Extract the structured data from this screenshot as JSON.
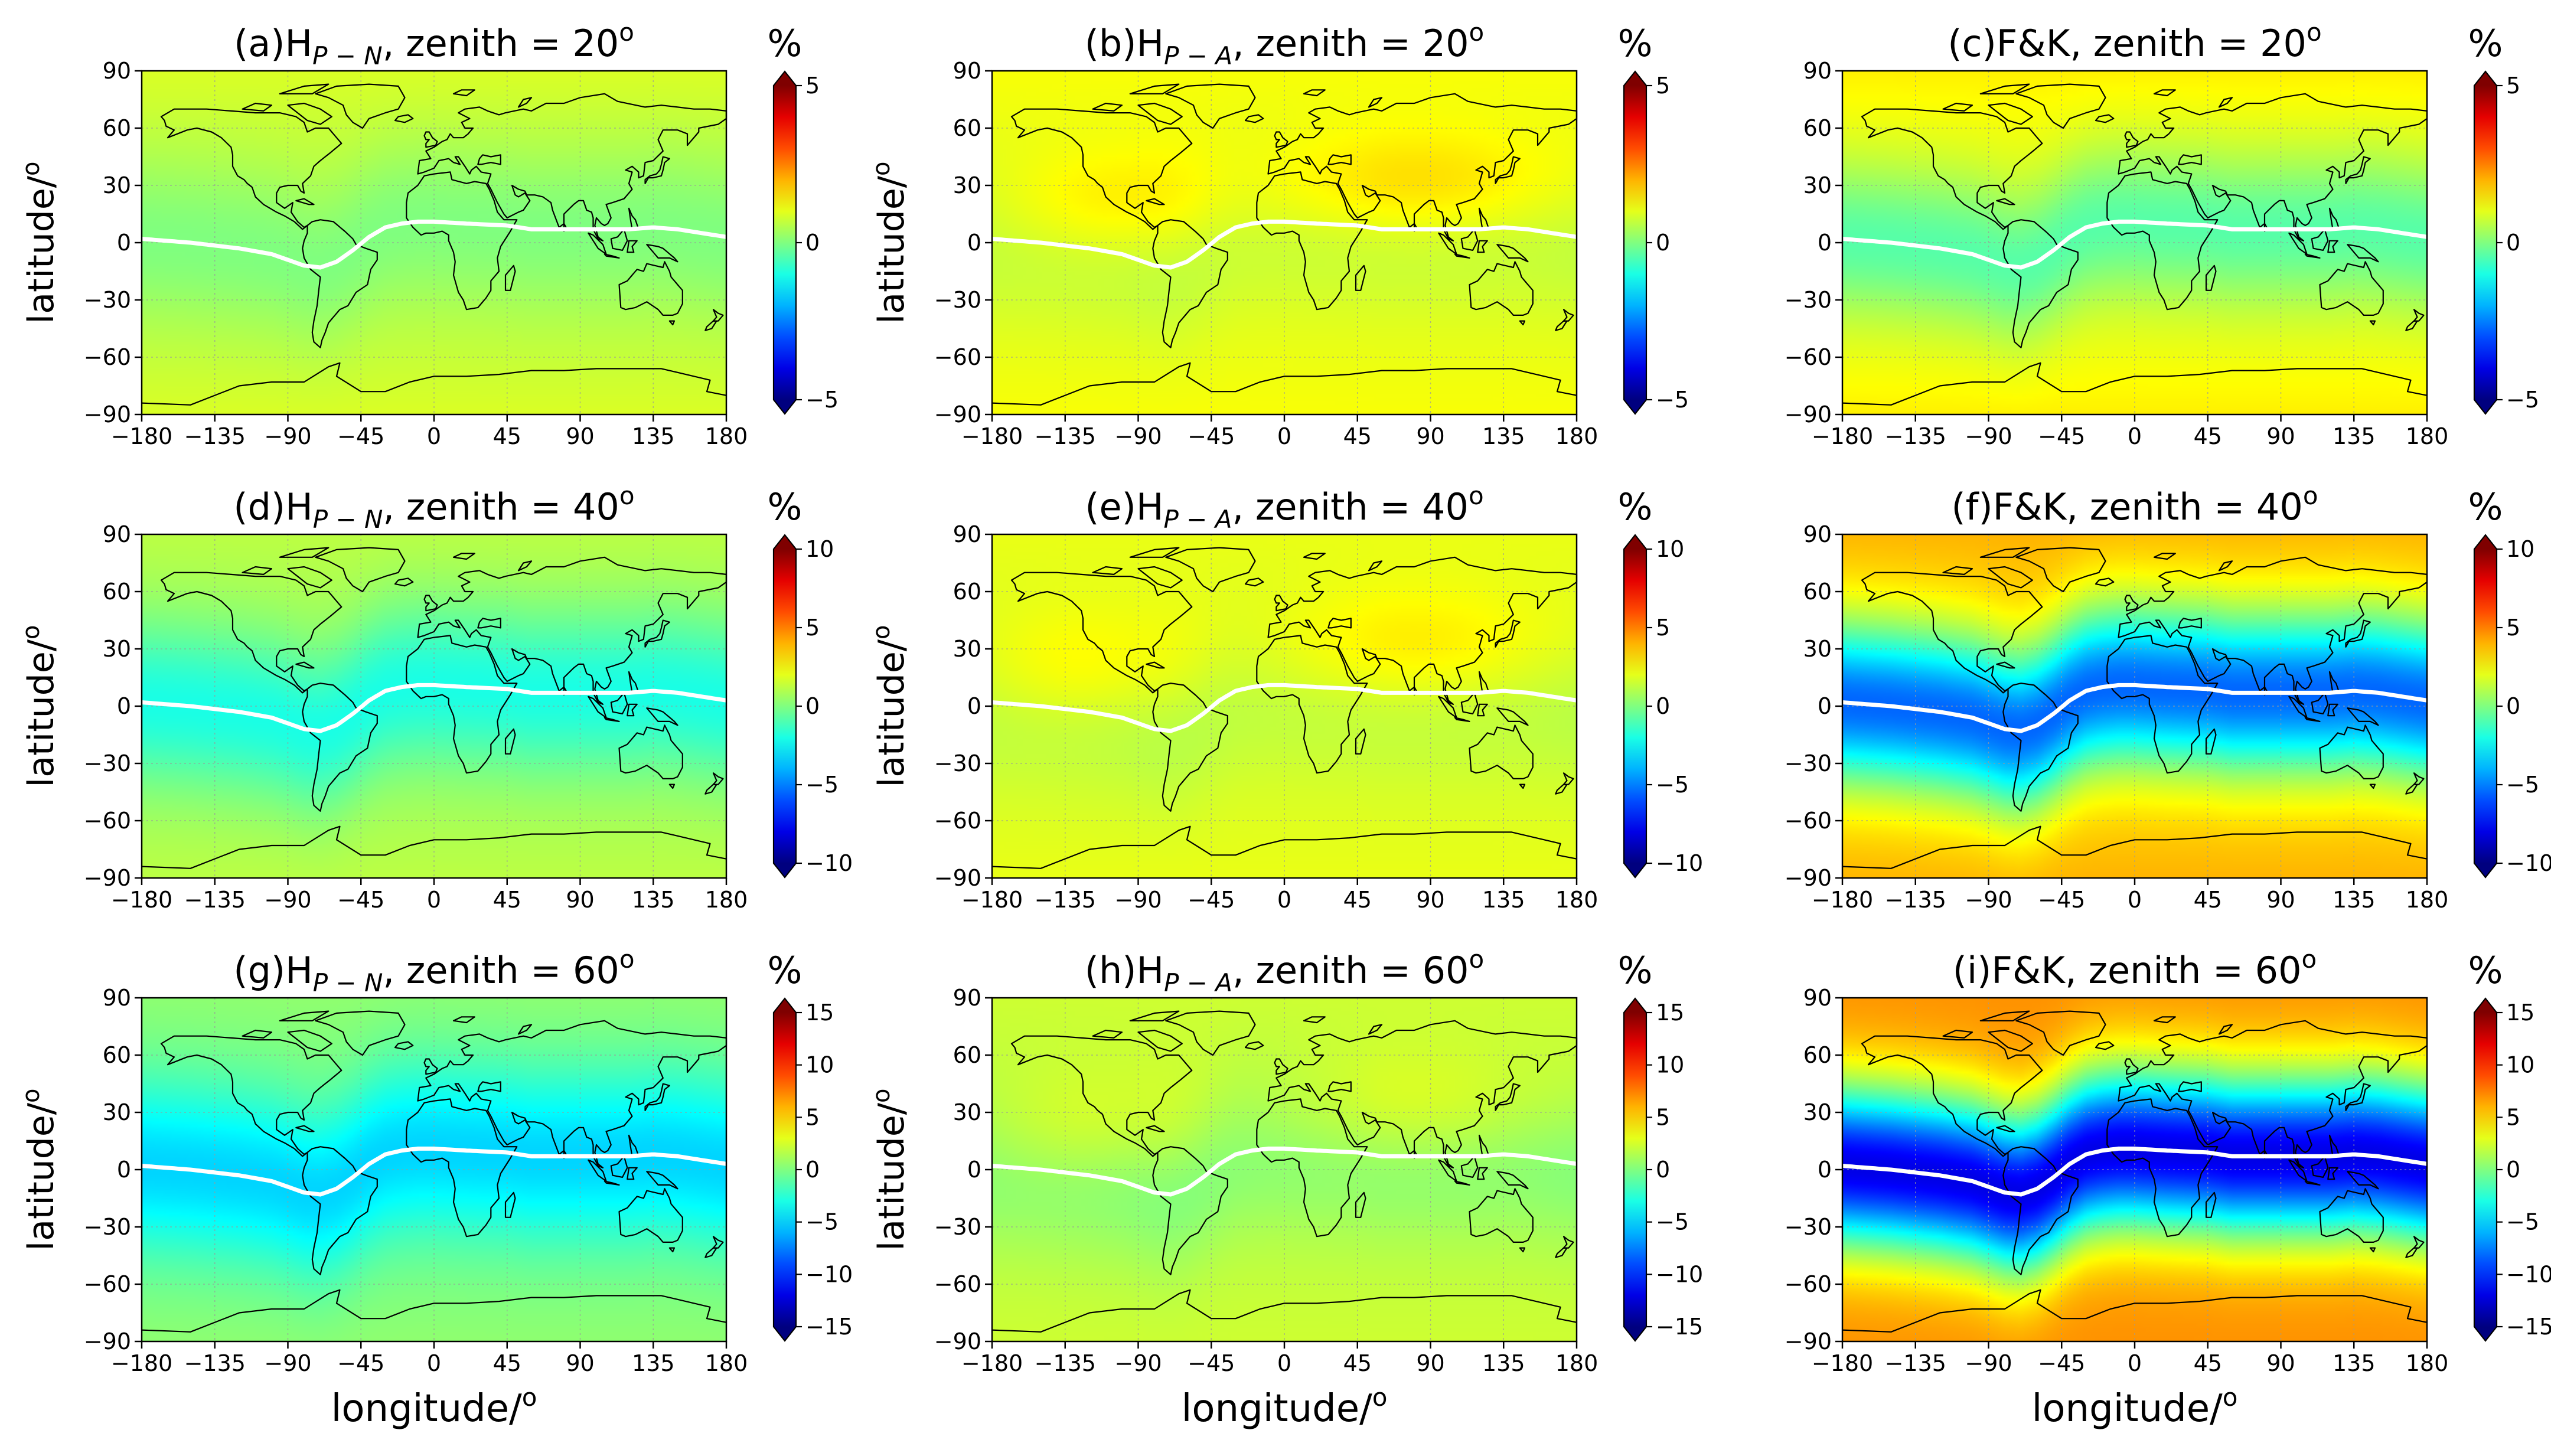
{
  "figure": {
    "common": {
      "xlabel": "longitude/",
      "ylabel": "latitude/",
      "degree_mark": "o",
      "colorbar_unit": "%",
      "xlim": [
        -180,
        180
      ],
      "ylim": [
        -90,
        90
      ],
      "xticks": [
        "−180",
        "−135",
        "−90",
        "−45",
        "0",
        "45",
        "90",
        "135",
        "180"
      ],
      "yticks": [
        "90",
        "60",
        "30",
        "0",
        "−30",
        "−60",
        "−90"
      ],
      "grid": "dotted",
      "colormap": "jet",
      "overlay": "coastlines + magnetic dip equator (white line)"
    },
    "dip_equator": {
      "lon": [
        -180,
        -150,
        -120,
        -100,
        -90,
        -80,
        -70,
        -60,
        -50,
        -40,
        -30,
        -20,
        -10,
        0,
        20,
        45,
        60,
        80,
        90,
        110,
        120,
        135,
        150,
        165,
        180
      ],
      "lat": [
        2,
        0,
        -3,
        -6,
        -9,
        -12,
        -13,
        -10,
        -4,
        3,
        8,
        10,
        11,
        11,
        10,
        9,
        7,
        7,
        7,
        7,
        7,
        8,
        7,
        5,
        3
      ]
    }
  },
  "chart_data": [
    {
      "type": "heatmap",
      "panel": "a",
      "row": 0,
      "col": 0,
      "title_prefix": "(a)H",
      "title_sub": "P − N",
      "title_main": ", zenith = 20",
      "clim": [
        -5,
        5
      ],
      "cbar_ticks": [
        "5",
        "0",
        "−5"
      ],
      "cbar_values": [
        5,
        0,
        -5
      ],
      "field": {
        "base": 0.6,
        "eq_amp": -0.6,
        "eq_width": 30,
        "pole_amp": 0.3,
        "bias": []
      }
    },
    {
      "type": "heatmap",
      "panel": "b",
      "row": 0,
      "col": 1,
      "title_prefix": "(b)H",
      "title_sub": "P − A",
      "title_main": ", zenith = 20",
      "clim": [
        -5,
        5
      ],
      "cbar_ticks": [
        "5",
        "0",
        "−5"
      ],
      "cbar_values": [
        5,
        0,
        -5
      ],
      "field": {
        "base": 1.0,
        "eq_amp": -0.4,
        "eq_width": 30,
        "pole_amp": 0.2,
        "bias": [
          {
            "lon": 80,
            "lat": 30,
            "amp": 0.8,
            "sx": 70,
            "sy": 20
          },
          {
            "lon": -110,
            "lat": 20,
            "amp": 0.6,
            "sx": 50,
            "sy": 20
          }
        ]
      }
    },
    {
      "type": "heatmap",
      "panel": "c",
      "row": 0,
      "col": 2,
      "title_prefix": "(c)F&K",
      "title_sub": "",
      "title_main": ", zenith = 20",
      "clim": [
        -5,
        5
      ],
      "cbar_ticks": [
        "5",
        "0",
        "−5"
      ],
      "cbar_values": [
        5,
        0,
        -5
      ],
      "field": {
        "base": 1.0,
        "eq_amp": -1.4,
        "eq_width": 28,
        "pole_amp": 0.4,
        "bias": []
      }
    },
    {
      "type": "heatmap",
      "panel": "d",
      "row": 1,
      "col": 0,
      "title_prefix": "(d)H",
      "title_sub": "P − N",
      "title_main": ", zenith = 40",
      "clim": [
        -10,
        10
      ],
      "cbar_ticks": [
        "10",
        "5",
        "0",
        "−5",
        "−10"
      ],
      "cbar_values": [
        10,
        5,
        0,
        -5,
        -10
      ],
      "field": {
        "base": 0.8,
        "eq_amp": -2.8,
        "eq_width": 30,
        "pole_amp": 0.4,
        "bias": []
      }
    },
    {
      "type": "heatmap",
      "panel": "e",
      "row": 1,
      "col": 1,
      "title_prefix": "(e)H",
      "title_sub": "P − A",
      "title_main": ", zenith = 40",
      "clim": [
        -10,
        10
      ],
      "cbar_ticks": [
        "10",
        "5",
        "0",
        "−5",
        "−10"
      ],
      "cbar_values": [
        10,
        5,
        0,
        -5,
        -10
      ],
      "field": {
        "base": 1.8,
        "eq_amp": -0.8,
        "eq_width": 30,
        "pole_amp": 0.3,
        "bias": [
          {
            "lon": 80,
            "lat": 30,
            "amp": 1.5,
            "sx": 70,
            "sy": 22
          },
          {
            "lon": -130,
            "lat": 20,
            "amp": 1.2,
            "sx": 50,
            "sy": 22
          }
        ]
      }
    },
    {
      "type": "heatmap",
      "panel": "f",
      "row": 1,
      "col": 2,
      "title_prefix": "(f)F&K",
      "title_sub": "",
      "title_main": ", zenith = 40",
      "clim": [
        -10,
        10
      ],
      "cbar_ticks": [
        "10",
        "5",
        "0",
        "−5",
        "−10"
      ],
      "cbar_values": [
        10,
        5,
        0,
        -5,
        -10
      ],
      "field": {
        "base": 3.5,
        "eq_amp": -9.0,
        "eq_width": 30,
        "pole_amp": 0.5,
        "bias": []
      }
    },
    {
      "type": "heatmap",
      "panel": "g",
      "row": 2,
      "col": 0,
      "title_prefix": "(g)H",
      "title_sub": "P − N",
      "title_main": ", zenith = 60",
      "clim": [
        -15,
        15
      ],
      "cbar_ticks": [
        "15",
        "10",
        "5",
        "0",
        "−5",
        "−10",
        "−15"
      ],
      "cbar_values": [
        15,
        10,
        5,
        0,
        -5,
        -10,
        -15
      ],
      "field": {
        "base": 0.0,
        "eq_amp": -5.0,
        "eq_width": 32,
        "pole_amp": 0.5,
        "bias": []
      }
    },
    {
      "type": "heatmap",
      "panel": "h",
      "row": 2,
      "col": 1,
      "title_prefix": "(h)H",
      "title_sub": "P − A",
      "title_main": ", zenith = 60",
      "clim": [
        -15,
        15
      ],
      "cbar_ticks": [
        "15",
        "10",
        "5",
        "0",
        "−5",
        "−10",
        "−15"
      ],
      "cbar_values": [
        15,
        10,
        5,
        0,
        -5,
        -10,
        -15
      ],
      "field": {
        "base": 2.0,
        "eq_amp": -2.0,
        "eq_width": 30,
        "pole_amp": 0.3,
        "bias": [
          {
            "lon": 80,
            "lat": 30,
            "amp": 1.8,
            "sx": 70,
            "sy": 22
          },
          {
            "lon": -130,
            "lat": 20,
            "amp": 1.6,
            "sx": 50,
            "sy": 22
          }
        ]
      }
    },
    {
      "type": "heatmap",
      "panel": "i",
      "row": 2,
      "col": 2,
      "title_prefix": "(i)F&K",
      "title_sub": "",
      "title_main": ", zenith = 60",
      "clim": [
        -15,
        15
      ],
      "cbar_ticks": [
        "15",
        "10",
        "5",
        "0",
        "−5",
        "−10",
        "−15"
      ],
      "cbar_values": [
        15,
        10,
        5,
        0,
        -5,
        -10,
        -15
      ],
      "field": {
        "base": 7.0,
        "eq_amp": -19.0,
        "eq_width": 30,
        "pole_amp": 0.0,
        "bias": []
      }
    }
  ]
}
